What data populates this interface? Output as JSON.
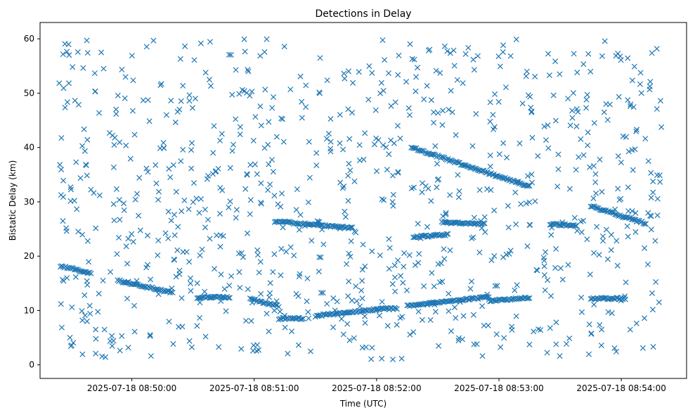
{
  "chart_data": {
    "type": "scatter",
    "title": "Detections in Delay",
    "xlabel": "Time (UTC)",
    "ylabel": "Bistatic Delay (km)",
    "xlim": [
      "2025-07-18 08:49:15",
      "2025-07-18 08:54:32"
    ],
    "ylim": [
      -2.5,
      63
    ],
    "x_ticks": [
      "2025-07-18 08:50:00",
      "2025-07-18 08:51:00",
      "2025-07-18 08:52:00",
      "2025-07-18 08:53:00",
      "2025-07-18 08:54:00"
    ],
    "y_ticks": [
      0,
      10,
      20,
      30,
      40,
      50,
      60
    ],
    "marker": "x",
    "color": "#1f77b4",
    "grid": false,
    "tracks": [
      {
        "x": [
          "2025-07-18 08:49:25",
          "2025-07-18 08:49:40"
        ],
        "y": [
          18.2,
          16.9
        ]
      },
      {
        "x": [
          "2025-07-18 08:49:53",
          "2025-07-18 08:50:20"
        ],
        "y": [
          15.5,
          13.3
        ]
      },
      {
        "x": [
          "2025-07-18 08:50:32",
          "2025-07-18 08:50:48"
        ],
        "y": [
          12.4,
          12.5
        ]
      },
      {
        "x": [
          "2025-07-18 08:50:58",
          "2025-07-18 08:51:12"
        ],
        "y": [
          12.1,
          10.8
        ]
      },
      {
        "x": [
          "2025-07-18 08:51:12",
          "2025-07-18 08:51:24"
        ],
        "y": [
          8.5,
          8.5
        ]
      },
      {
        "x": [
          "2025-07-18 08:51:30",
          "2025-07-18 08:52:00"
        ],
        "y": [
          9.0,
          10.2
        ]
      },
      {
        "x": [
          "2025-07-18 08:52:00",
          "2025-07-18 08:52:10"
        ],
        "y": [
          10.2,
          10.4
        ]
      },
      {
        "x": [
          "2025-07-18 08:52:15",
          "2025-07-18 08:52:55"
        ],
        "y": [
          10.8,
          12.5
        ]
      },
      {
        "x": [
          "2025-07-18 08:52:55",
          "2025-07-18 08:53:15"
        ],
        "y": [
          11.8,
          12.3
        ]
      },
      {
        "x": [
          "2025-07-18 08:53:45",
          "2025-07-18 08:54:02"
        ],
        "y": [
          12.2,
          12.2
        ]
      },
      {
        "x": [
          "2025-07-18 08:51:10",
          "2025-07-18 08:51:48"
        ],
        "y": [
          26.4,
          25.2
        ]
      },
      {
        "x": [
          "2025-07-18 08:52:18",
          "2025-07-18 08:52:35"
        ],
        "y": [
          23.5,
          24.0
        ]
      },
      {
        "x": [
          "2025-07-18 08:52:32",
          "2025-07-18 08:52:53"
        ],
        "y": [
          26.2,
          25.9
        ]
      },
      {
        "x": [
          "2025-07-18 08:53:25",
          "2025-07-18 08:53:38"
        ],
        "y": [
          25.9,
          25.6
        ]
      },
      {
        "x": [
          "2025-07-18 08:53:45",
          "2025-07-18 08:54:12"
        ],
        "y": [
          29.2,
          26.0
        ]
      },
      {
        "x": [
          "2025-07-18 08:52:17",
          "2025-07-18 08:53:15"
        ],
        "y": [
          40.0,
          32.8
        ]
      }
    ],
    "clutter_points": 900
  }
}
